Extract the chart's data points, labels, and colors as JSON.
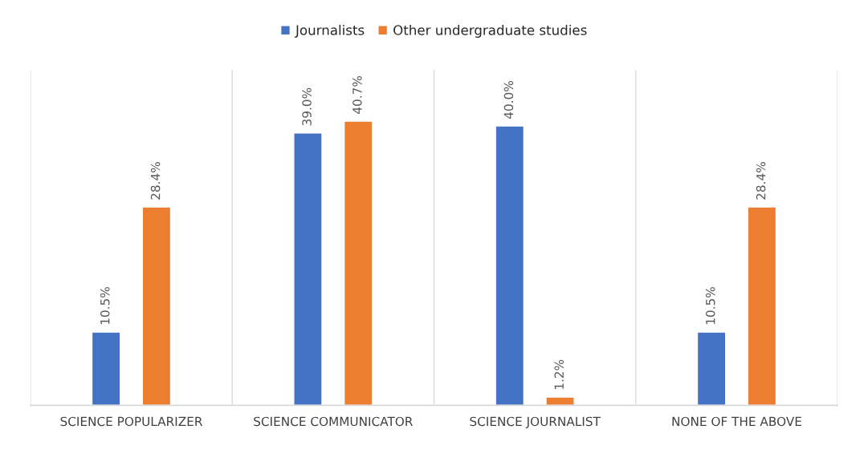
{
  "chart_data": {
    "type": "bar",
    "categories": [
      "SCIENCE POPULARIZER",
      "SCIENCE COMMUNICATOR",
      "SCIENCE JOURNALIST",
      "NONE OF THE ABOVE"
    ],
    "series": [
      {
        "name": "Journalists",
        "color": "#4472c4",
        "values": [
          10.5,
          39.0,
          40.0,
          10.5
        ],
        "value_labels": [
          "10.5%",
          "39.0%",
          "40.0%",
          "10.5%"
        ]
      },
      {
        "name": "Other undergraduate studies",
        "color": "#ed7d31",
        "values": [
          28.4,
          40.7,
          1.2,
          28.4
        ],
        "value_labels": [
          "28.4%",
          "40.7%",
          "1.2%",
          "28.4%"
        ]
      }
    ],
    "grid": "x",
    "legend": "top"
  }
}
